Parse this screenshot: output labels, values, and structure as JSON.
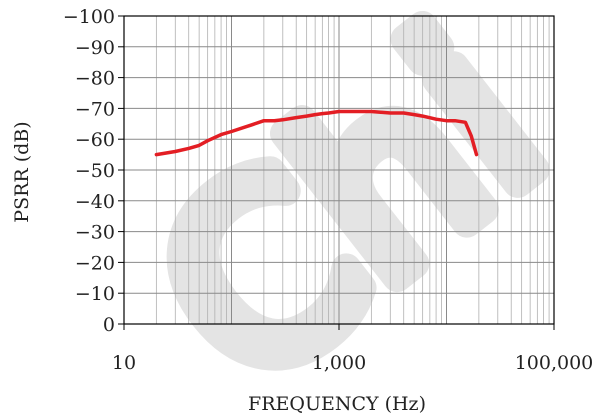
{
  "chart_data": {
    "type": "line",
    "title": "",
    "xlabel": "FREQUENCY (Hz)",
    "ylabel": "PSRR (dB)",
    "x_scale": "log",
    "xlim": [
      10,
      100000
    ],
    "ylim": [
      0,
      -100
    ],
    "x_ticks": [
      {
        "value": 10,
        "label": "10"
      },
      {
        "value": 1000,
        "label": "1,000"
      },
      {
        "value": 100000,
        "label": "100,000"
      }
    ],
    "y_ticks": [
      {
        "value": -100,
        "label": "−100"
      },
      {
        "value": -90,
        "label": "−90"
      },
      {
        "value": -80,
        "label": "−80"
      },
      {
        "value": -70,
        "label": "−70"
      },
      {
        "value": -60,
        "label": "−60"
      },
      {
        "value": -50,
        "label": "−50"
      },
      {
        "value": -40,
        "label": "−40"
      },
      {
        "value": -30,
        "label": "−30"
      },
      {
        "value": -20,
        "label": "−20"
      },
      {
        "value": -10,
        "label": "−10"
      },
      {
        "value": 0,
        "label": "0"
      }
    ],
    "grid": true,
    "series": [
      {
        "color": "#e31e24",
        "x": [
          20,
          30,
          40,
          50,
          60,
          80,
          100,
          150,
          200,
          250,
          300,
          400,
          500,
          600,
          700,
          800,
          1000,
          1500,
          2000,
          3000,
          4000,
          5000,
          6000,
          8000,
          10000,
          12000,
          15000,
          17000,
          19000
        ],
        "y": [
          -55,
          -56,
          -57,
          -58,
          -59.5,
          -61.5,
          -62.5,
          -64.5,
          -66,
          -66,
          -66.3,
          -67,
          -67.5,
          -68,
          -68.3,
          -68.5,
          -69,
          -69,
          -69,
          -68.5,
          -68.5,
          -68,
          -67.5,
          -66.5,
          -66,
          -66,
          -65.5,
          -61,
          -55
        ]
      }
    ],
    "watermark": "Chi"
  }
}
